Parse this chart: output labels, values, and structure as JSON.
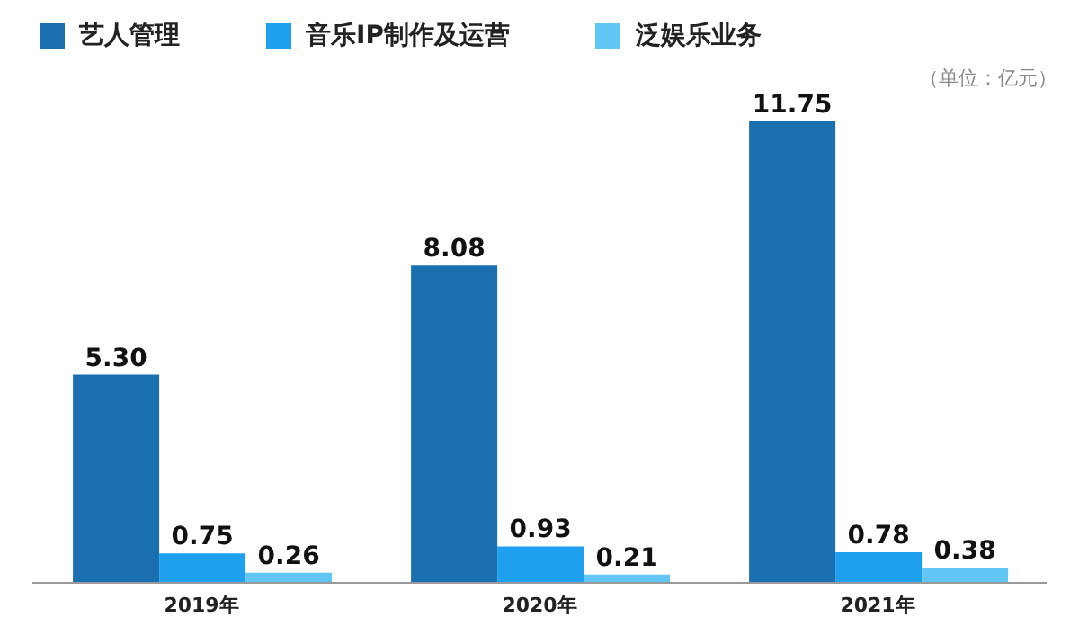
{
  "chart_data": {
    "type": "bar",
    "categories": [
      "2019年",
      "2020年",
      "2021年"
    ],
    "series": [
      {
        "name": "艺人管理",
        "color": "#1a6fb0",
        "values": [
          5.3,
          8.08,
          11.75
        ],
        "value_labels": [
          "5.30",
          "8.08",
          "11.75"
        ]
      },
      {
        "name": "音乐IP制作及运营",
        "color": "#1ea0ee",
        "values": [
          0.75,
          0.93,
          0.78
        ],
        "value_labels": [
          "0.75",
          "0.93",
          "0.78"
        ]
      },
      {
        "name": "泛娱乐业务",
        "color": "#62c6f4",
        "values": [
          0.26,
          0.21,
          0.38
        ],
        "value_labels": [
          "0.26",
          "0.21",
          "0.38"
        ]
      }
    ],
    "legend": "top left",
    "annotations": [
      "（单位：亿元）"
    ]
  }
}
